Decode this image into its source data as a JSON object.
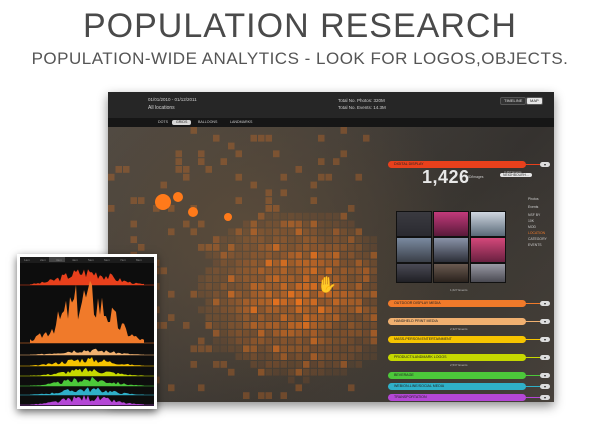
{
  "slide": {
    "title": "POPULATION RESEARCH",
    "subtitle": "POPULATION-WIDE ANALYTICS - LOOK FOR LOGOS,OBJECTS."
  },
  "app": {
    "date_range": "01/01/2010 - 01/12/2011",
    "location": "All locations",
    "stats": {
      "photos_label": "Total No. Photos:",
      "photos_value": "320M",
      "events_label": "Total No. Events:",
      "events_value": "14.3M"
    },
    "view_buttons": [
      "TIMELINE",
      "MAP"
    ],
    "active_view": "MAP",
    "tabs": [
      "DOTS",
      "GRIDS",
      "BALLOONS",
      "LANDMARKS"
    ],
    "active_tab": "GRIDS",
    "counter": "1,426",
    "counter_unit": "ID/Images",
    "search_placeholder": "NEIGHBOURH...",
    "side_labels": [
      "Photos",
      "Events",
      "NSF BY",
      "10K",
      "MOD",
      "LOCATION",
      "CATEGORY",
      "EVENTS"
    ],
    "categories": [
      {
        "label": "DIGITAL DISPLAY",
        "color": "#e8401c",
        "events": ""
      },
      {
        "label": "OUTDOOR DISPLAY MEDIA",
        "color": "#f07a2a",
        "events": ""
      },
      {
        "label": "HANDHELD PRINT MEDIA",
        "color": "#f0b070",
        "events": "2,327 Events"
      },
      {
        "label": "MASS-PERSON ENTERTAINMENT",
        "color": "#f6c400",
        "events": ""
      },
      {
        "label": "PRODUCT/LANDMARK LOGOS",
        "color": "#c6d800",
        "events": "2,537 Events"
      },
      {
        "label": "BEVERAGE",
        "color": "#4cc83a",
        "events": ""
      },
      {
        "label": "WEB/ON-LINE/SOCIAL MEDIA",
        "color": "#2fb0c8",
        "events": ""
      },
      {
        "label": "TRANSPORTATION",
        "color": "#b447d6",
        "events": ""
      }
    ],
    "first_category_events": "3,457 Events",
    "thumbs_events": "1,627 Events"
  },
  "timeline": {
    "ticks": [
      "1am",
      "2am",
      "3am",
      "4am",
      "5am",
      "6am",
      "7am",
      "8am"
    ],
    "series_colors": [
      "#e8401c",
      "#f07a2a",
      "#f0b070",
      "#f6c400",
      "#c6d800",
      "#4cc83a",
      "#2fb0c8",
      "#b447d6"
    ]
  },
  "colors": {
    "accent": "#f07a2a",
    "heat": "#ff7a1a"
  }
}
